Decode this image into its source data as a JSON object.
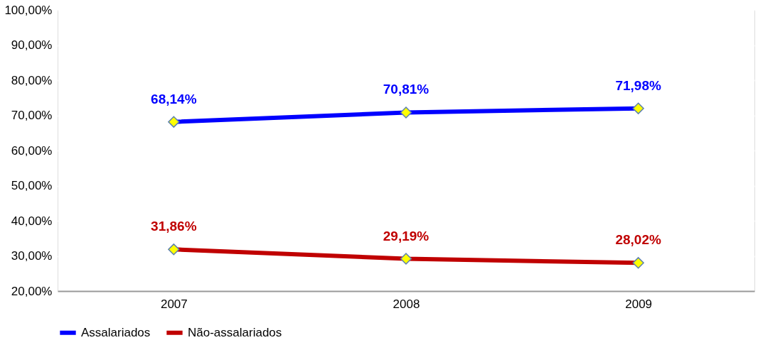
{
  "chart_data": {
    "type": "line",
    "categories": [
      "2007",
      "2008",
      "2009"
    ],
    "series": [
      {
        "name": "Assalariados",
        "color": "#0000ff",
        "values": [
          68.14,
          70.81,
          71.98
        ],
        "value_labels": [
          "68,14%",
          "70,81%",
          "71,98%"
        ]
      },
      {
        "name": "Não-assalariados",
        "color": "#c00000",
        "values": [
          31.86,
          29.19,
          28.02
        ],
        "value_labels": [
          "31,86%",
          "29,19%",
          "28,02%"
        ]
      }
    ],
    "ylim": [
      20,
      100
    ],
    "yticks": [
      {
        "value": 20,
        "label": "20,00%"
      },
      {
        "value": 30,
        "label": "30,00%"
      },
      {
        "value": 40,
        "label": "40,00%"
      },
      {
        "value": 50,
        "label": "50,00%"
      },
      {
        "value": 60,
        "label": "60,00%"
      },
      {
        "value": 70,
        "label": "70,00%"
      },
      {
        "value": 80,
        "label": "80,00%"
      },
      {
        "value": 90,
        "label": "90,00%"
      },
      {
        "value": 100,
        "label": "100,00%"
      }
    ],
    "grid": "y",
    "legend": "bottom",
    "marker": "diamond",
    "line_style": "solid"
  }
}
